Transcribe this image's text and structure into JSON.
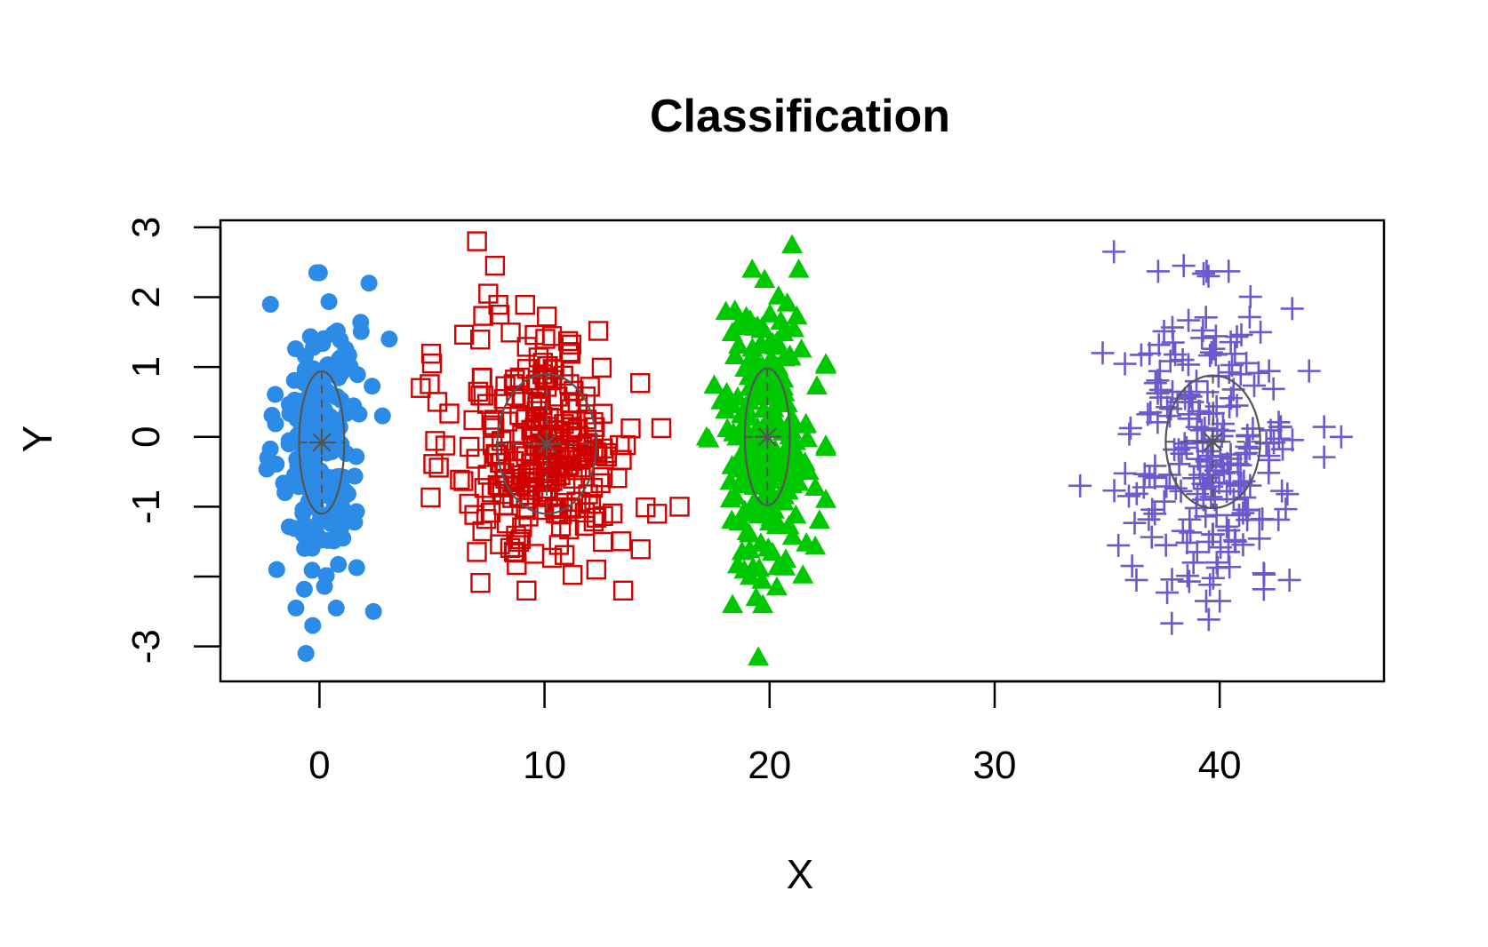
{
  "chart_data": {
    "type": "scatter",
    "title": "Classification",
    "xlabel": "X",
    "ylabel": "Y",
    "xlim": [
      -4.4,
      47.3
    ],
    "ylim": [
      -3.5,
      3.1
    ],
    "x_ticks": [
      0,
      10,
      20,
      30,
      40
    ],
    "x_tick_labels": [
      "0",
      "10",
      "20",
      "30",
      "40"
    ],
    "y_ticks": [
      -3,
      -2,
      -1,
      0,
      1,
      2,
      3
    ],
    "y_tick_labels": [
      "-3",
      "",
      "-1",
      "0",
      "1",
      "2",
      "3"
    ],
    "grid": false,
    "legend": "none",
    "series": [
      {
        "marker": "circle-filled",
        "color": "#2B8BE6",
        "mean": [
          0,
          -0.05
        ],
        "sd": [
          0.9,
          1.0
        ],
        "count": 220,
        "ellipse": {
          "center": [
            0.1,
            -0.08
          ],
          "rx": 1.0,
          "ry": 1.02
        },
        "outliers": [
          [
            -0.6,
            -3.1
          ],
          [
            -0.3,
            -2.7
          ],
          [
            3.1,
            1.4
          ],
          [
            2.2,
            2.2
          ],
          [
            2.4,
            -2.5
          ],
          [
            -2.3,
            -0.3
          ],
          [
            -1.9,
            -1.9
          ],
          [
            2.8,
            0.3
          ]
        ]
      },
      {
        "marker": "square-open",
        "color": "#D00000",
        "mean": [
          10.1,
          -0.15
        ],
        "sd": [
          2.0,
          0.85
        ],
        "count": 260,
        "ellipse": {
          "center": [
            10.1,
            -0.1
          ],
          "rx": 2.2,
          "ry": 1.0
        },
        "outliers": [
          [
            7.0,
            2.8
          ],
          [
            7.8,
            2.45
          ],
          [
            7.5,
            2.05
          ],
          [
            8.0,
            1.75
          ],
          [
            4.5,
            0.7
          ],
          [
            5.0,
            1.05
          ],
          [
            15.0,
            -1.1
          ],
          [
            16.0,
            -1.0
          ],
          [
            13.5,
            -2.2
          ],
          [
            12.3,
            -1.9
          ],
          [
            9.2,
            -2.2
          ]
        ]
      },
      {
        "marker": "triangle-filled",
        "color": "#00C800",
        "mean": [
          19.9,
          0
        ],
        "sd": [
          1.0,
          1.0
        ],
        "count": 230,
        "ellipse": {
          "center": [
            19.9,
            0.0
          ],
          "rx": 1.0,
          "ry": 0.98
        },
        "outliers": [
          [
            21.0,
            2.75
          ],
          [
            19.5,
            -3.15
          ],
          [
            19.4,
            -2.3
          ],
          [
            17.2,
            0.0
          ],
          [
            22.5,
            1.05
          ],
          [
            22.5,
            -0.15
          ]
        ]
      },
      {
        "marker": "plus",
        "color": "#6A5ACD",
        "mean": [
          39.7,
          -0.15
        ],
        "sd": [
          1.9,
          1.05
        ],
        "count": 220,
        "ellipse": {
          "center": [
            39.7,
            -0.07
          ],
          "rx": 2.1,
          "ry": 0.95
        },
        "outliers": [
          [
            35.3,
            2.65
          ],
          [
            38.4,
            2.45
          ],
          [
            39.5,
            2.3
          ],
          [
            33.8,
            -0.7
          ],
          [
            45.4,
            0.0
          ],
          [
            39.4,
            -2.35
          ],
          [
            40.0,
            -2.35
          ],
          [
            43.1,
            -2.05
          ],
          [
            36.3,
            -2.05
          ],
          [
            34.8,
            1.2
          ]
        ]
      }
    ]
  }
}
